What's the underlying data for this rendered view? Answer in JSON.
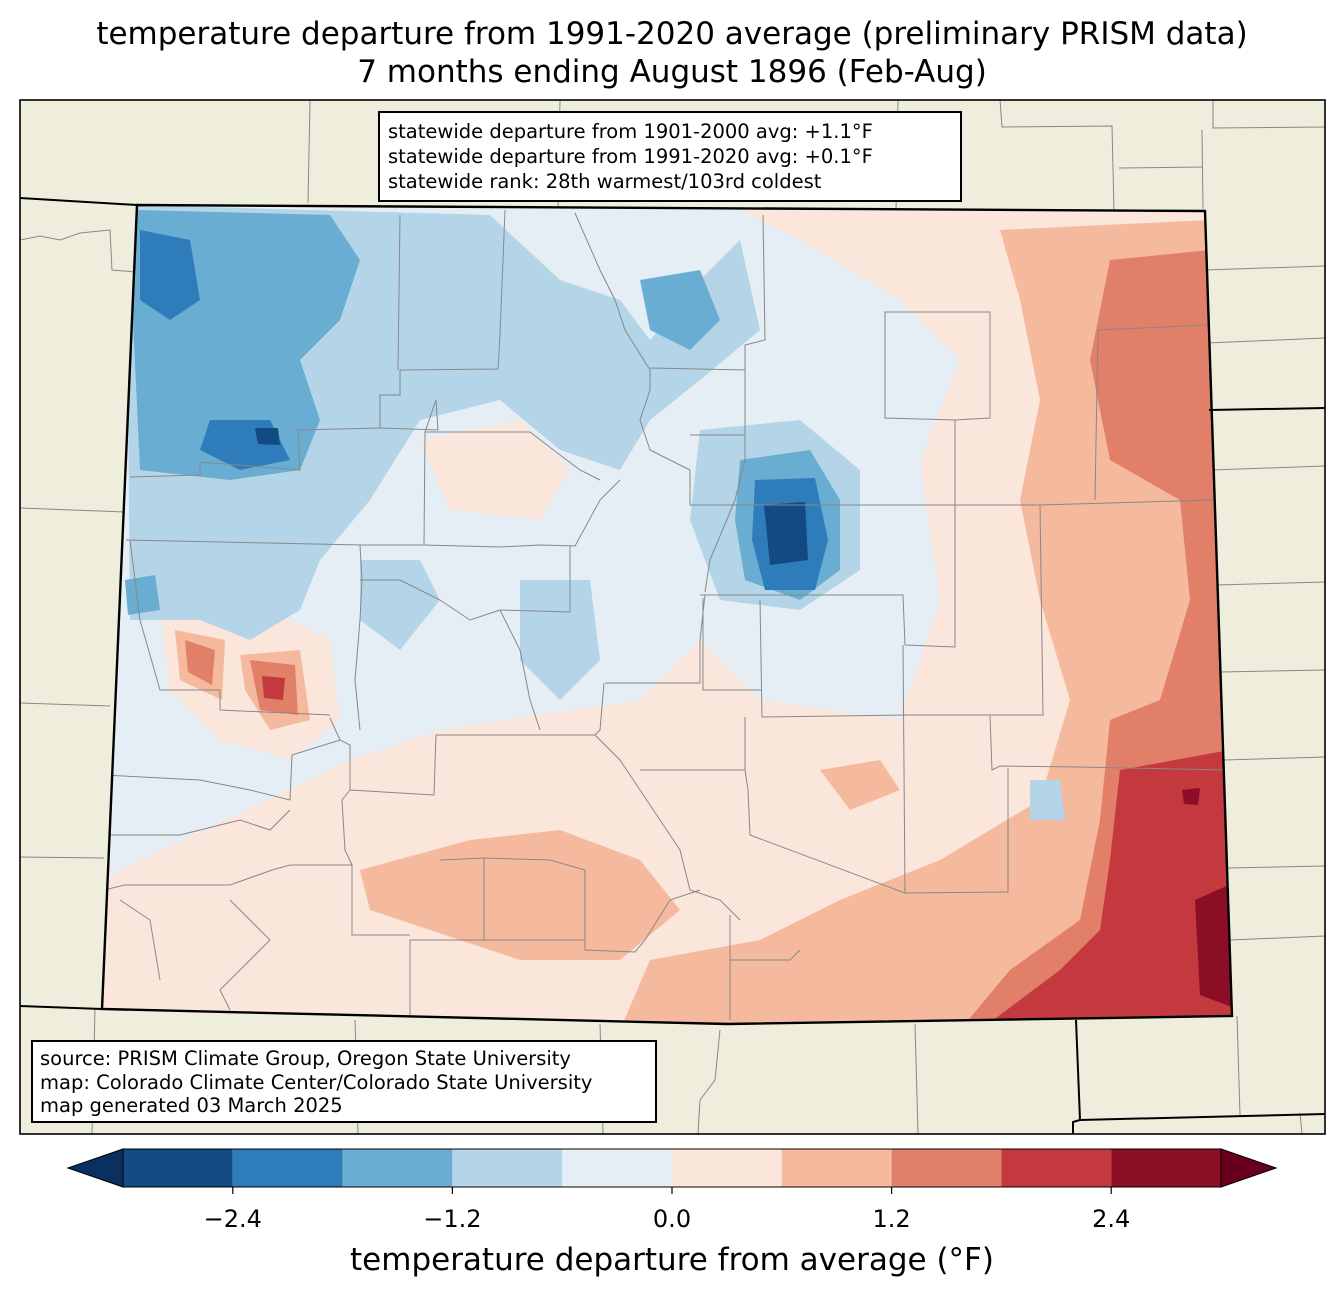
{
  "title": {
    "line1": "temperature departure from 1991-2020 average (preliminary PRISM data)",
    "line2": "7 months ending August 1896 (Feb-Aug)"
  },
  "stats": {
    "line1": "statewide departure from 1901-2000 avg: +1.1°F",
    "line2": "statewide departure from 1991-2020 avg: +0.1°F",
    "line3": "statewide rank: 28th warmest/103rd coldest"
  },
  "source": {
    "line1": "source: PRISM Climate Group, Oregon State University",
    "line2": "map: Colorado Climate Center/Colorado State University",
    "line3": "map generated 03 March 2025"
  },
  "colorbar": {
    "label": "temperature departure from average (°F)",
    "ticks": [
      {
        "value": -2.4,
        "label": "−2.4"
      },
      {
        "value": -1.2,
        "label": "−1.2"
      },
      {
        "value": 0.0,
        "label": "0.0"
      },
      {
        "value": 1.2,
        "label": "1.2"
      },
      {
        "value": 2.4,
        "label": "2.4"
      }
    ],
    "range": [
      -3.0,
      3.0
    ],
    "bins": [
      {
        "min": -3.0,
        "max": -2.4,
        "color": "#134a84"
      },
      {
        "min": -2.4,
        "max": -1.8,
        "color": "#2e7cba"
      },
      {
        "min": -1.8,
        "max": -1.2,
        "color": "#6aadd2"
      },
      {
        "min": -1.2,
        "max": -0.6,
        "color": "#b3d5e7"
      },
      {
        "min": -0.6,
        "max": 0.0,
        "color": "#e5eef4"
      },
      {
        "min": 0.0,
        "max": 0.6,
        "color": "#fbe6dc"
      },
      {
        "min": 0.6,
        "max": 1.2,
        "color": "#f5b99e"
      },
      {
        "min": 1.2,
        "max": 1.8,
        "color": "#e17f69"
      },
      {
        "min": 1.8,
        "max": 2.4,
        "color": "#c3393d"
      },
      {
        "min": 2.4,
        "max": 3.0,
        "color": "#8b0d26"
      }
    ],
    "under_color": "#0b3060",
    "over_color": "#67001f"
  },
  "colors": {
    "land": "#efeedc",
    "county_line": "#888888",
    "state_line": "#000000"
  }
}
